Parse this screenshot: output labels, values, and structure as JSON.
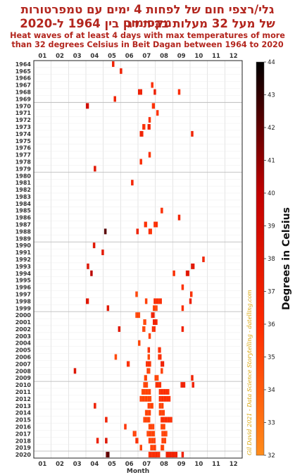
{
  "titles": {
    "hebrew_line1": "גלי/רצפי חום של לפחות 4 ימים עם טמפרטורות מקסימום",
    "hebrew_line2": "של מעל 32 מעלות בבית דגן בין 1964 ל-2020",
    "english_line1": "Heat waves of at least 4 days with max temperatures of more",
    "english_line2": "than 32 degrees Celsius in Beit Dagan between 1964 to 2020"
  },
  "credit": "Gil David 2021 - Data Science Storytelling - datelling.com",
  "colorbar": {
    "label": "Degrees in Celsius",
    "min": 32,
    "max": 44,
    "ticks": [
      "32",
      "33",
      "34",
      "35",
      "36",
      "37",
      "38",
      "39",
      "40",
      "41",
      "42",
      "43",
      "44"
    ],
    "colors": [
      "#ff8c1a",
      "#ff2a00",
      "#c20000",
      "#000000"
    ]
  },
  "chart_data": {
    "type": "heatmap",
    "xlabel": "Month",
    "x_ticks": [
      "01",
      "02",
      "03",
      "04",
      "05",
      "06",
      "07",
      "08",
      "09",
      "10",
      "11",
      "12"
    ],
    "y_ticks": [
      "1964",
      "1965",
      "1966",
      "1967",
      "1968",
      "1969",
      "1970",
      "1971",
      "1972",
      "1973",
      "1974",
      "1975",
      "1976",
      "1977",
      "1978",
      "1979",
      "1980",
      "1981",
      "1982",
      "1983",
      "1984",
      "1985",
      "1986",
      "1987",
      "1988",
      "1989",
      "1990",
      "1991",
      "1992",
      "1993",
      "1994",
      "1995",
      "1996",
      "1997",
      "1998",
      "1999",
      "2000",
      "2001",
      "2002",
      "2003",
      "2004",
      "2005",
      "2006",
      "2007",
      "2008",
      "2009",
      "2010",
      "2011",
      "2012",
      "2013",
      "2014",
      "2015",
      "2016",
      "2017",
      "2018",
      "2019",
      "2020"
    ],
    "grid": true,
    "note": "Each cell = one day of a heat wave (year row, month position), colored by max temperature.",
    "cells": [
      {
        "year": 1964,
        "month": 5.5,
        "days": 4,
        "temp": 37
      },
      {
        "year": 1965,
        "month": 5.95,
        "days": 4,
        "temp": 37
      },
      {
        "year": 1967,
        "month": 7.75,
        "days": 4,
        "temp": 36
      },
      {
        "year": 1968,
        "month": 7.0,
        "days": 7,
        "temp": 37
      },
      {
        "year": 1968,
        "month": 7.9,
        "days": 4,
        "temp": 37
      },
      {
        "year": 1968,
        "month": 9.3,
        "days": 4,
        "temp": 36
      },
      {
        "year": 1969,
        "month": 5.6,
        "days": 4,
        "temp": 37
      },
      {
        "year": 1970,
        "month": 4.0,
        "days": 5,
        "temp": 39
      },
      {
        "year": 1970,
        "month": 7.8,
        "days": 5,
        "temp": 36
      },
      {
        "year": 1971,
        "month": 8.05,
        "days": 4,
        "temp": 36
      },
      {
        "year": 1972,
        "month": 7.6,
        "days": 4,
        "temp": 36
      },
      {
        "year": 1973,
        "month": 7.25,
        "days": 5,
        "temp": 36
      },
      {
        "year": 1973,
        "month": 7.55,
        "days": 5,
        "temp": 37
      },
      {
        "year": 1974,
        "month": 7.1,
        "days": 6,
        "temp": 37
      },
      {
        "year": 1974,
        "month": 10.05,
        "days": 4,
        "temp": 37
      },
      {
        "year": 1977,
        "month": 7.6,
        "days": 4,
        "temp": 36
      },
      {
        "year": 1978,
        "month": 7.1,
        "days": 4,
        "temp": 36
      },
      {
        "year": 1979,
        "month": 4.45,
        "days": 4,
        "temp": 38
      },
      {
        "year": 1981,
        "month": 6.6,
        "days": 4,
        "temp": 37
      },
      {
        "year": 1985,
        "month": 8.3,
        "days": 4,
        "temp": 36
      },
      {
        "year": 1986,
        "month": 9.3,
        "days": 4,
        "temp": 37
      },
      {
        "year": 1987,
        "month": 7.35,
        "days": 5,
        "temp": 36
      },
      {
        "year": 1987,
        "month": 7.9,
        "days": 7,
        "temp": 36
      },
      {
        "year": 1988,
        "month": 5.05,
        "days": 4,
        "temp": 42
      },
      {
        "year": 1988,
        "month": 6.9,
        "days": 4,
        "temp": 37
      },
      {
        "year": 1988,
        "month": 7.6,
        "days": 6,
        "temp": 36
      },
      {
        "year": 1990,
        "month": 4.4,
        "days": 4,
        "temp": 38
      },
      {
        "year": 1991,
        "month": 4.9,
        "days": 4,
        "temp": 38
      },
      {
        "year": 1992,
        "month": 10.7,
        "days": 4,
        "temp": 37
      },
      {
        "year": 1993,
        "month": 4.05,
        "days": 4,
        "temp": 38
      },
      {
        "year": 1993,
        "month": 10.05,
        "days": 6,
        "temp": 38
      },
      {
        "year": 1994,
        "month": 4.25,
        "days": 4,
        "temp": 40
      },
      {
        "year": 1994,
        "month": 9.0,
        "days": 4,
        "temp": 36
      },
      {
        "year": 1994,
        "month": 9.75,
        "days": 6,
        "temp": 38
      },
      {
        "year": 1996,
        "month": 9.5,
        "days": 4,
        "temp": 36
      },
      {
        "year": 1997,
        "month": 6.85,
        "days": 4,
        "temp": 35
      },
      {
        "year": 1997,
        "month": 10.0,
        "days": 4,
        "temp": 36
      },
      {
        "year": 1998,
        "month": 4.0,
        "days": 5,
        "temp": 38
      },
      {
        "year": 1998,
        "month": 7.4,
        "days": 4,
        "temp": 35
      },
      {
        "year": 1998,
        "month": 7.9,
        "days": 14,
        "temp": 36
      },
      {
        "year": 1998,
        "month": 9.95,
        "days": 4,
        "temp": 37
      },
      {
        "year": 1999,
        "month": 5.2,
        "days": 4,
        "temp": 38
      },
      {
        "year": 1999,
        "month": 7.85,
        "days": 8,
        "temp": 35
      },
      {
        "year": 1999,
        "month": 9.5,
        "days": 4,
        "temp": 36
      },
      {
        "year": 2000,
        "month": 6.85,
        "days": 8,
        "temp": 35
      },
      {
        "year": 2000,
        "month": 7.75,
        "days": 6,
        "temp": 37
      },
      {
        "year": 2001,
        "month": 7.3,
        "days": 5,
        "temp": 35
      },
      {
        "year": 2001,
        "month": 7.85,
        "days": 8,
        "temp": 37
      },
      {
        "year": 2002,
        "month": 5.85,
        "days": 4,
        "temp": 38
      },
      {
        "year": 2002,
        "month": 7.25,
        "days": 5,
        "temp": 35
      },
      {
        "year": 2002,
        "month": 7.8,
        "days": 6,
        "temp": 36
      },
      {
        "year": 2002,
        "month": 9.5,
        "days": 4,
        "temp": 37
      },
      {
        "year": 2003,
        "month": 7.6,
        "days": 4,
        "temp": 35
      },
      {
        "year": 2004,
        "month": 7.0,
        "days": 4,
        "temp": 35
      },
      {
        "year": 2005,
        "month": 7.55,
        "days": 4,
        "temp": 36
      },
      {
        "year": 2005,
        "month": 8.15,
        "days": 5,
        "temp": 36
      },
      {
        "year": 2006,
        "month": 5.65,
        "days": 4,
        "temp": 35
      },
      {
        "year": 2006,
        "month": 7.55,
        "days": 4,
        "temp": 35
      },
      {
        "year": 2006,
        "month": 8.15,
        "days": 6,
        "temp": 36
      },
      {
        "year": 2007,
        "month": 6.35,
        "days": 5,
        "temp": 36
      },
      {
        "year": 2007,
        "month": 7.45,
        "days": 9,
        "temp": 36
      },
      {
        "year": 2007,
        "month": 8.3,
        "days": 6,
        "temp": 37
      },
      {
        "year": 2008,
        "month": 3.3,
        "days": 4,
        "temp": 38
      },
      {
        "year": 2008,
        "month": 7.5,
        "days": 6,
        "temp": 35
      },
      {
        "year": 2008,
        "month": 8.3,
        "days": 4,
        "temp": 35
      },
      {
        "year": 2009,
        "month": 7.35,
        "days": 5,
        "temp": 35
      },
      {
        "year": 2009,
        "month": 7.95,
        "days": 7,
        "temp": 35
      },
      {
        "year": 2009,
        "month": 10.05,
        "days": 4,
        "temp": 37
      },
      {
        "year": 2010,
        "month": 7.3,
        "days": 8,
        "temp": 35
      },
      {
        "year": 2010,
        "month": 8.0,
        "days": 10,
        "temp": 36
      },
      {
        "year": 2010,
        "month": 9.45,
        "days": 8,
        "temp": 37
      },
      {
        "year": 2010,
        "month": 10.1,
        "days": 4,
        "temp": 37
      },
      {
        "year": 2011,
        "month": 7.2,
        "days": 16,
        "temp": 35
      },
      {
        "year": 2011,
        "month": 8.2,
        "days": 18,
        "temp": 36
      },
      {
        "year": 2012,
        "month": 7.1,
        "days": 20,
        "temp": 35
      },
      {
        "year": 2012,
        "month": 8.2,
        "days": 20,
        "temp": 36
      },
      {
        "year": 2013,
        "month": 4.45,
        "days": 4,
        "temp": 37
      },
      {
        "year": 2013,
        "month": 7.55,
        "days": 10,
        "temp": 35
      },
      {
        "year": 2013,
        "month": 8.2,
        "days": 8,
        "temp": 35
      },
      {
        "year": 2014,
        "month": 7.4,
        "days": 10,
        "temp": 35
      },
      {
        "year": 2014,
        "month": 8.2,
        "days": 10,
        "temp": 35
      },
      {
        "year": 2015,
        "month": 5.1,
        "days": 4,
        "temp": 37
      },
      {
        "year": 2015,
        "month": 7.3,
        "days": 12,
        "temp": 35
      },
      {
        "year": 2015,
        "month": 8.3,
        "days": 20,
        "temp": 36
      },
      {
        "year": 2016,
        "month": 6.2,
        "days": 4,
        "temp": 36
      },
      {
        "year": 2016,
        "month": 7.6,
        "days": 10,
        "temp": 35
      },
      {
        "year": 2016,
        "month": 8.3,
        "days": 8,
        "temp": 35
      },
      {
        "year": 2017,
        "month": 6.7,
        "days": 6,
        "temp": 35
      },
      {
        "year": 2017,
        "month": 7.5,
        "days": 14,
        "temp": 35
      },
      {
        "year": 2017,
        "month": 8.35,
        "days": 10,
        "temp": 35
      },
      {
        "year": 2018,
        "month": 4.6,
        "days": 4,
        "temp": 37
      },
      {
        "year": 2018,
        "month": 5.1,
        "days": 4,
        "temp": 38
      },
      {
        "year": 2018,
        "month": 6.85,
        "days": 5,
        "temp": 36
      },
      {
        "year": 2018,
        "month": 7.6,
        "days": 12,
        "temp": 35
      },
      {
        "year": 2018,
        "month": 8.35,
        "days": 8,
        "temp": 35
      },
      {
        "year": 2019,
        "month": 7.1,
        "days": 4,
        "temp": 35
      },
      {
        "year": 2019,
        "month": 7.7,
        "days": 10,
        "temp": 35
      },
      {
        "year": 2019,
        "month": 8.3,
        "days": 6,
        "temp": 35
      },
      {
        "year": 2020,
        "month": 5.15,
        "days": 6,
        "temp": 42
      },
      {
        "year": 2020,
        "month": 7.6,
        "days": 20,
        "temp": 36
      },
      {
        "year": 2020,
        "month": 8.6,
        "days": 20,
        "temp": 37
      },
      {
        "year": 2020,
        "month": 9.5,
        "days": 4,
        "temp": 37
      }
    ]
  }
}
